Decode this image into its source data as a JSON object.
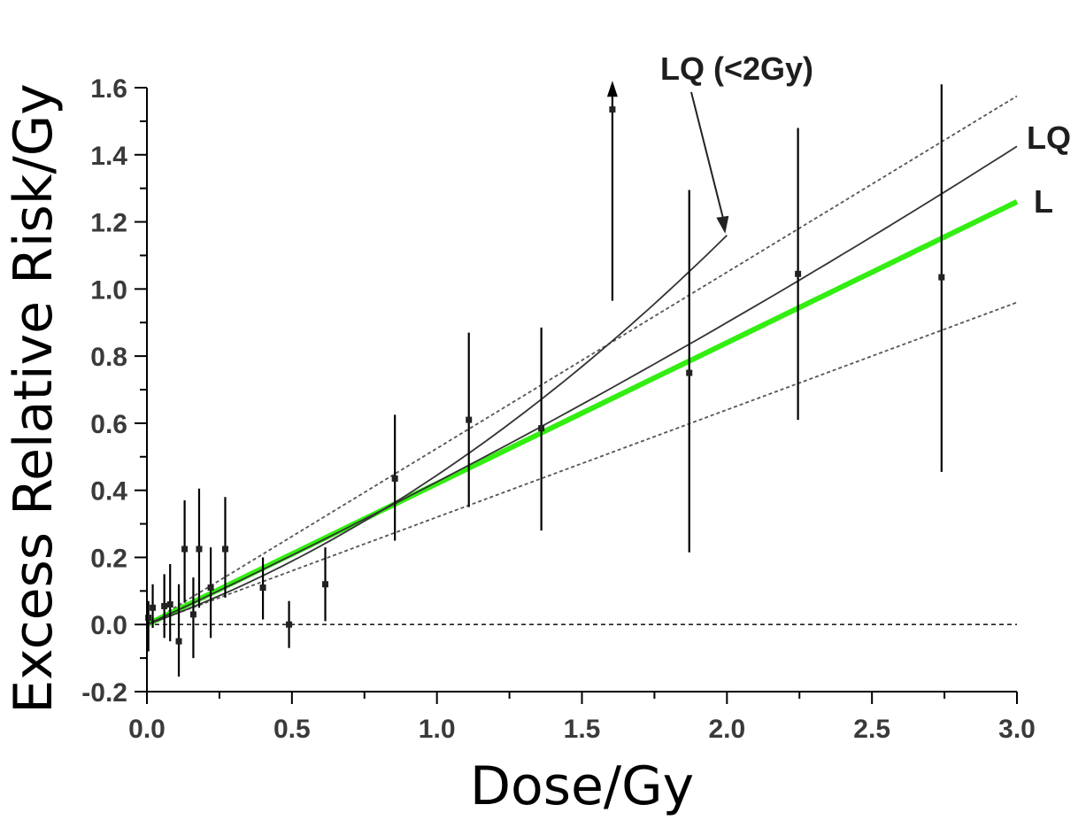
{
  "chart_data": {
    "type": "scatter",
    "xlabel": "Dose/Gy",
    "ylabel": "Excess Relative Risk/Gy",
    "xlim": [
      0,
      3.0
    ],
    "ylim": [
      -0.2,
      1.6
    ],
    "x_ticks": [
      "0.0",
      "0.5",
      "1.0",
      "1.5",
      "2.0",
      "2.5",
      "3.0"
    ],
    "y_ticks": [
      "-0.2",
      "0.0",
      "0.2",
      "0.4",
      "0.6",
      "0.8",
      "1.0",
      "1.2",
      "1.4",
      "1.6"
    ],
    "reference_line_y": 0,
    "points": [
      {
        "x": 0.005,
        "y": 0.02,
        "lo": -0.08,
        "hi": 0.07
      },
      {
        "x": 0.02,
        "y": 0.05,
        "lo": -0.01,
        "hi": 0.12
      },
      {
        "x": 0.06,
        "y": 0.055,
        "lo": -0.04,
        "hi": 0.15
      },
      {
        "x": 0.08,
        "y": 0.06,
        "lo": -0.05,
        "hi": 0.18
      },
      {
        "x": 0.11,
        "y": -0.05,
        "lo": -0.155,
        "hi": 0.12
      },
      {
        "x": 0.13,
        "y": 0.225,
        "lo": 0.065,
        "hi": 0.37
      },
      {
        "x": 0.16,
        "y": 0.03,
        "lo": -0.1,
        "hi": 0.14
      },
      {
        "x": 0.18,
        "y": 0.225,
        "lo": 0.05,
        "hi": 0.405
      },
      {
        "x": 0.22,
        "y": 0.11,
        "lo": -0.04,
        "hi": 0.23
      },
      {
        "x": 0.27,
        "y": 0.225,
        "lo": 0.08,
        "hi": 0.38
      },
      {
        "x": 0.4,
        "y": 0.11,
        "lo": 0.015,
        "hi": 0.2
      },
      {
        "x": 0.49,
        "y": 0.0,
        "lo": -0.07,
        "hi": 0.07
      },
      {
        "x": 0.615,
        "y": 0.12,
        "lo": 0.01,
        "hi": 0.23
      },
      {
        "x": 0.855,
        "y": 0.435,
        "lo": 0.25,
        "hi": 0.625
      },
      {
        "x": 1.11,
        "y": 0.61,
        "lo": 0.35,
        "hi": 0.87
      },
      {
        "x": 1.36,
        "y": 0.585,
        "lo": 0.28,
        "hi": 0.885
      },
      {
        "x": 1.605,
        "y": 1.535,
        "lo": 0.965,
        "hi": 1.61,
        "arrow_up": true
      },
      {
        "x": 1.87,
        "y": 0.75,
        "lo": 0.215,
        "hi": 1.295
      },
      {
        "x": 2.245,
        "y": 1.045,
        "lo": 0.61,
        "hi": 1.48
      },
      {
        "x": 2.74,
        "y": 1.035,
        "lo": 0.455,
        "hi": 1.61
      }
    ],
    "series": [
      {
        "name": "L",
        "slope": 0.42,
        "color": "#33ee11"
      },
      {
        "name": "LQ",
        "linear": 0.4,
        "quadratic": 0.025,
        "color": "#333333"
      },
      {
        "name": "LQ (<2Gy)",
        "linear": 0.31,
        "quadratic": 0.135,
        "x_max": 2.0,
        "color": "#333333"
      }
    ],
    "confidence_band": {
      "upper_slope": 0.525,
      "lower_slope": 0.32,
      "style": "dashed",
      "color": "#555555"
    },
    "annotations": [
      {
        "text": "LQ (<2Gy)",
        "arrow_to_x": 2.0,
        "arrow_to_y": 1.16
      },
      {
        "text": "LQ"
      },
      {
        "text": "L"
      }
    ]
  }
}
